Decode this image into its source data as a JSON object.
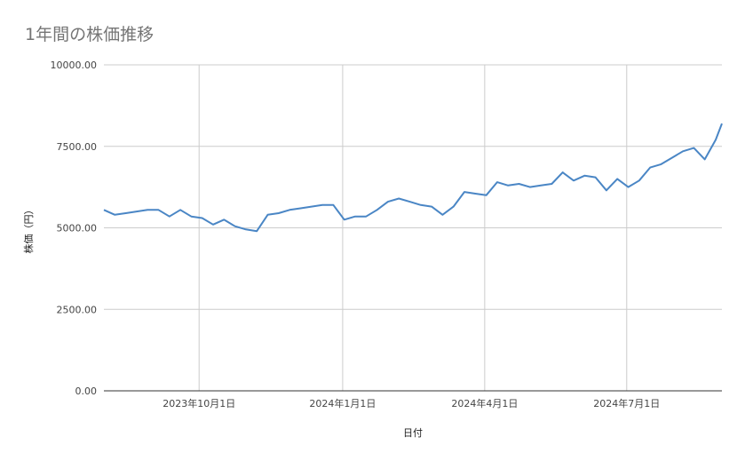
{
  "chart_data": {
    "type": "line",
    "title": "1年間の株価推移",
    "xlabel": "日付",
    "ylabel": "株価（円）",
    "ylim": [
      0,
      10000
    ],
    "yticks": [
      0,
      2500,
      5000,
      7500,
      10000
    ],
    "ytick_labels": [
      "0.00",
      "2500.00",
      "5000.00",
      "7500.00",
      "10000.00"
    ],
    "xlim": [
      "2023-08-01",
      "2024-08-31"
    ],
    "xticks": [
      "2023-10-01",
      "2024-01-01",
      "2024-04-01",
      "2024-07-01"
    ],
    "xtick_labels": [
      "2023年10月1日",
      "2024年1月1日",
      "2024年4月1日",
      "2024年7月1日"
    ],
    "grid": true,
    "color": "#4a86c5",
    "series": [
      {
        "x": [
          "2023-08-01",
          "2023-08-08",
          "2023-08-15",
          "2023-08-22",
          "2023-08-29",
          "2023-09-05",
          "2023-09-12",
          "2023-09-19",
          "2023-09-26",
          "2023-10-03",
          "2023-10-10",
          "2023-10-17",
          "2023-10-24",
          "2023-10-31",
          "2023-11-07",
          "2023-11-14",
          "2023-11-21",
          "2023-11-28",
          "2023-12-05",
          "2023-12-12",
          "2023-12-19",
          "2023-12-26",
          "2024-01-02",
          "2024-01-09",
          "2024-01-16",
          "2024-01-23",
          "2024-01-30",
          "2024-02-06",
          "2024-02-13",
          "2024-02-20",
          "2024-02-27",
          "2024-03-05",
          "2024-03-12",
          "2024-03-19",
          "2024-03-26",
          "2024-04-02",
          "2024-04-09",
          "2024-04-16",
          "2024-04-23",
          "2024-04-30",
          "2024-05-07",
          "2024-05-14",
          "2024-05-21",
          "2024-05-28",
          "2024-06-04",
          "2024-06-11",
          "2024-06-18",
          "2024-06-25",
          "2024-07-02",
          "2024-07-09",
          "2024-07-16",
          "2024-07-23",
          "2024-07-30",
          "2024-08-06",
          "2024-08-13",
          "2024-08-20",
          "2024-08-27",
          "2024-08-31"
        ],
        "values": [
          5550,
          5400,
          5450,
          5500,
          5550,
          5550,
          5350,
          5550,
          5350,
          5300,
          5100,
          5250,
          5050,
          4950,
          4900,
          5400,
          5450,
          5550,
          5600,
          5650,
          5700,
          5700,
          5250,
          5350,
          5350,
          5550,
          5800,
          5900,
          5800,
          5700,
          5650,
          5400,
          5650,
          6100,
          6050,
          6000,
          6400,
          6300,
          6350,
          6250,
          6300,
          6350,
          6700,
          6450,
          6600,
          6550,
          6150,
          6500,
          6250,
          6450,
          6850,
          6950,
          7150,
          7350,
          7450,
          7100,
          7700,
          8200
        ]
      }
    ]
  }
}
